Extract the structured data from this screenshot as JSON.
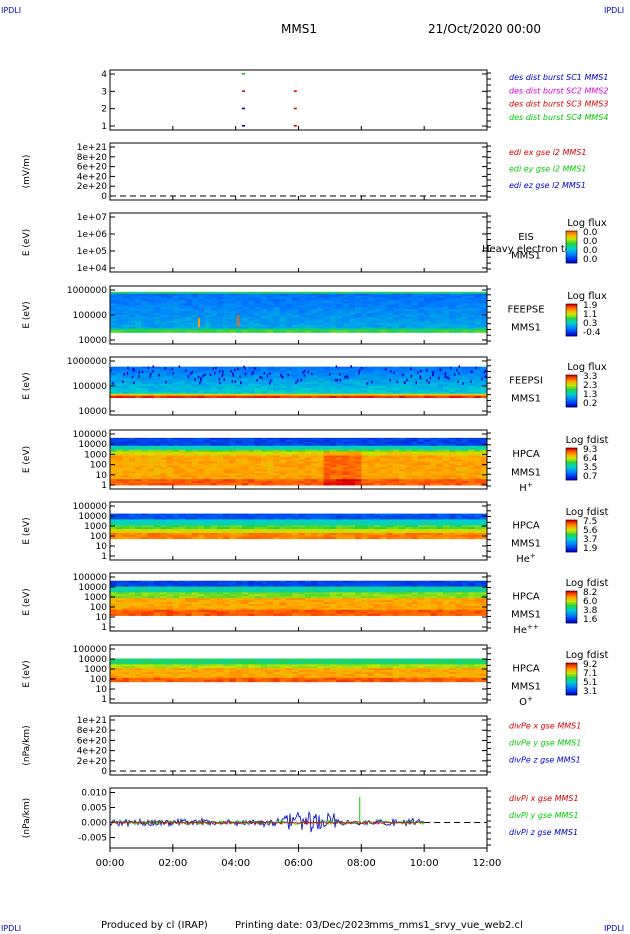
{
  "header": {
    "corner_mark": "IPDLI",
    "spacecraft": "MMS1",
    "datetime": "21/Oct/2020 00:00"
  },
  "footer": {
    "produced_by": "Produced by cl (IRAP)",
    "printing_date": "Printing date: 03/Dec/2023",
    "filename": "mms_mms1_srvy_vue_web2.cl"
  },
  "colors": {
    "red": "#dd0000",
    "green": "#00cc00",
    "blue": "#0000cc",
    "magenta": "#dd00dd"
  },
  "chart_data": [
    {
      "type": "scatter",
      "ticks": [
        "4",
        "3",
        "2",
        "1"
      ],
      "legend": [
        {
          "text": "des dist burst SC1 MMS1",
          "color": "#0000cc"
        },
        {
          "text": "des dist burst SC2 MMS2",
          "color": "#dd00dd"
        },
        {
          "text": "des dist burst SC3 MMS3",
          "color": "#dd0000"
        },
        {
          "text": "des dist burst SC4 MMS4",
          "color": "#00cc00"
        }
      ],
      "points": [
        {
          "t": 4.2,
          "y": 4,
          "color": "#00cc00"
        },
        {
          "t": 4.2,
          "y": 3,
          "color": "#dd0000"
        },
        {
          "t": 4.2,
          "y": 2,
          "color": "#0000cc"
        },
        {
          "t": 4.2,
          "y": 1,
          "color": "#0000cc"
        },
        {
          "t": 5.85,
          "y": 3,
          "color": "#dd0000"
        },
        {
          "t": 5.85,
          "y": 2,
          "color": "#dd0000"
        },
        {
          "t": 5.85,
          "y": 1,
          "color": "#dd0000"
        }
      ]
    },
    {
      "type": "line",
      "ylabel": "(mV/m)",
      "ticks": [
        "1e+21",
        "8e+20",
        "6e+20",
        "4e+20",
        "2e+20",
        "0"
      ],
      "legend": [
        {
          "text": "edi ex gse l2 MMS1",
          "color": "#dd0000"
        },
        {
          "text": "edi ey gse l2 MMS1",
          "color": "#00cc00"
        },
        {
          "text": "edi ez gse l2 MMS1",
          "color": "#0000cc"
        }
      ]
    },
    {
      "type": "heatmap",
      "ylabel": "E (eV)",
      "ticks": [
        "1e+07",
        "1e+06",
        "1e+05",
        "1e+04"
      ],
      "labels": [
        "EIS",
        "MMS1"
      ],
      "overlap_text": "Heavy electron to",
      "cb_title": "Log flux",
      "cb_ticks": [
        "0.0",
        "0.0",
        "0.0",
        "0.0"
      ],
      "empty": true
    },
    {
      "type": "heatmap",
      "ylabel": "E (eV)",
      "ticks": [
        "1000000",
        "100000",
        "10000"
      ],
      "labels": [
        "FEEPSE",
        "MMS1"
      ],
      "cb_title": "Log flux",
      "cb_ticks": [
        "1.9",
        "1.1",
        "0.3",
        "-0.4"
      ],
      "profile": "feepse"
    },
    {
      "type": "heatmap",
      "ylabel": "E (eV)",
      "ticks": [
        "1000000",
        "100000",
        "10000"
      ],
      "labels": [
        "FEEPSI",
        "MMS1"
      ],
      "cb_title": "Log flux",
      "cb_ticks": [
        "3.3",
        "2.3",
        "1.3",
        "0.2"
      ],
      "profile": "feepsi"
    },
    {
      "type": "heatmap",
      "ylabel": "E (eV)",
      "ticks": [
        "100000",
        "10000",
        "1000",
        "100",
        "10",
        "1"
      ],
      "labels": [
        "HPCA",
        "MMS1"
      ],
      "species": "H",
      "charge": "+",
      "cb_title": "Log fdist",
      "cb_ticks": [
        "9.3",
        "6.4",
        "3.5",
        "0.7"
      ],
      "profile": "hplus"
    },
    {
      "type": "heatmap",
      "ylabel": "E (eV)",
      "ticks": [
        "100000",
        "10000",
        "1000",
        "100",
        "10",
        "1"
      ],
      "labels": [
        "HPCA",
        "MMS1"
      ],
      "species": "He",
      "charge": "+",
      "cb_title": "Log fdist",
      "cb_ticks": [
        "7.5",
        "5.6",
        "3.7",
        "1.9"
      ],
      "profile": "heplus"
    },
    {
      "type": "heatmap",
      "ylabel": "E (eV)",
      "ticks": [
        "100000",
        "10000",
        "1000",
        "100",
        "10",
        "1"
      ],
      "labels": [
        "HPCA",
        "MMS1"
      ],
      "species": "He",
      "charge": "++",
      "cb_title": "Log fdist",
      "cb_ticks": [
        "8.2",
        "6.0",
        "3.8",
        "1.6"
      ],
      "profile": "hepp"
    },
    {
      "type": "heatmap",
      "ylabel": "E (eV)",
      "ticks": [
        "100000",
        "10000",
        "1000",
        "100",
        "10",
        "1"
      ],
      "labels": [
        "HPCA",
        "MMS1"
      ],
      "species": "O",
      "charge": "+",
      "cb_title": "Log fdist",
      "cb_ticks": [
        "9.2",
        "7.1",
        "5.1",
        "3.1"
      ],
      "profile": "oplus"
    },
    {
      "type": "line",
      "ylabel": "(nPa/km)",
      "ticks": [
        "1e+21",
        "8e+20",
        "6e+20",
        "4e+20",
        "2e+20",
        "0"
      ],
      "legend": [
        {
          "text": "divPe x gse MMS1",
          "color": "#dd0000"
        },
        {
          "text": "divPe y gse MMS1",
          "color": "#00cc00"
        },
        {
          "text": "divPe z gse MMS1",
          "color": "#0000cc"
        }
      ]
    },
    {
      "type": "line",
      "ylabel": "(nPa/km)",
      "ticks": [
        "0.010",
        "0.005",
        "0.000",
        "-0.005"
      ],
      "ylim": [
        -0.0085,
        0.0115
      ],
      "legend": [
        {
          "text": "divPi x gse MMS1",
          "color": "#dd0000"
        },
        {
          "text": "divPi y gse MMS1",
          "color": "#00cc00"
        },
        {
          "text": "divPi z gse MMS1",
          "color": "#0000cc"
        }
      ],
      "data_end_hour": 10.0,
      "spike_hour": 7.95
    }
  ],
  "x_axis": {
    "tick_labels": [
      "00:00",
      "02:00",
      "04:00",
      "06:00",
      "08:00",
      "10:00",
      "12:00"
    ],
    "range_hours": [
      0,
      12
    ]
  }
}
